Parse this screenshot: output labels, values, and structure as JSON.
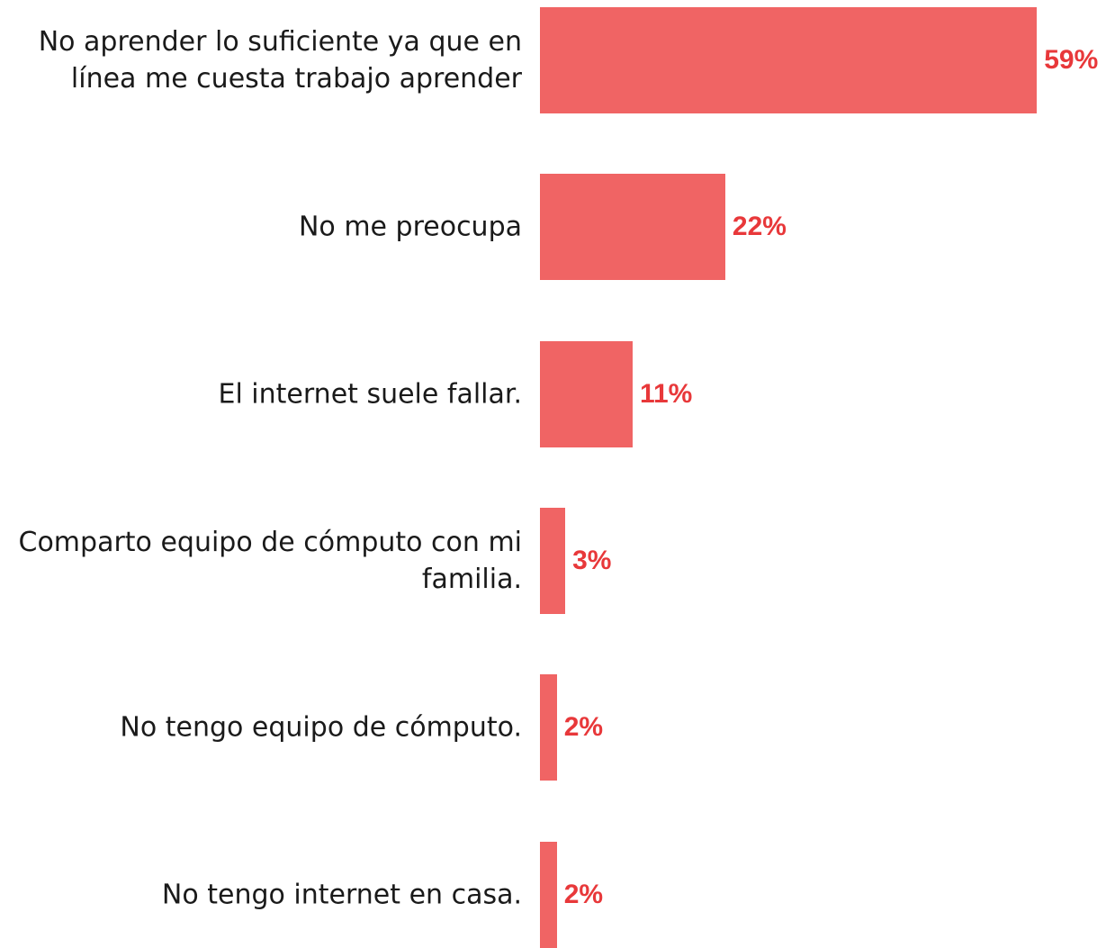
{
  "chart_data": {
    "type": "bar",
    "orientation": "horizontal",
    "categories": [
      "No aprender lo suficiente ya que en línea me cuesta trabajo aprender",
      "No me preocupa",
      "El internet suele fallar.",
      "Comparto equipo de cómputo con mi familia.",
      "No tengo equipo de cómputo.",
      "No tengo internet en casa."
    ],
    "values": [
      59,
      22,
      11,
      3,
      2,
      2
    ],
    "value_labels": [
      "59%",
      "22%",
      "11%",
      "3%",
      "2%",
      "2%"
    ],
    "color": "#f06464",
    "label_color": "#e8383a"
  }
}
